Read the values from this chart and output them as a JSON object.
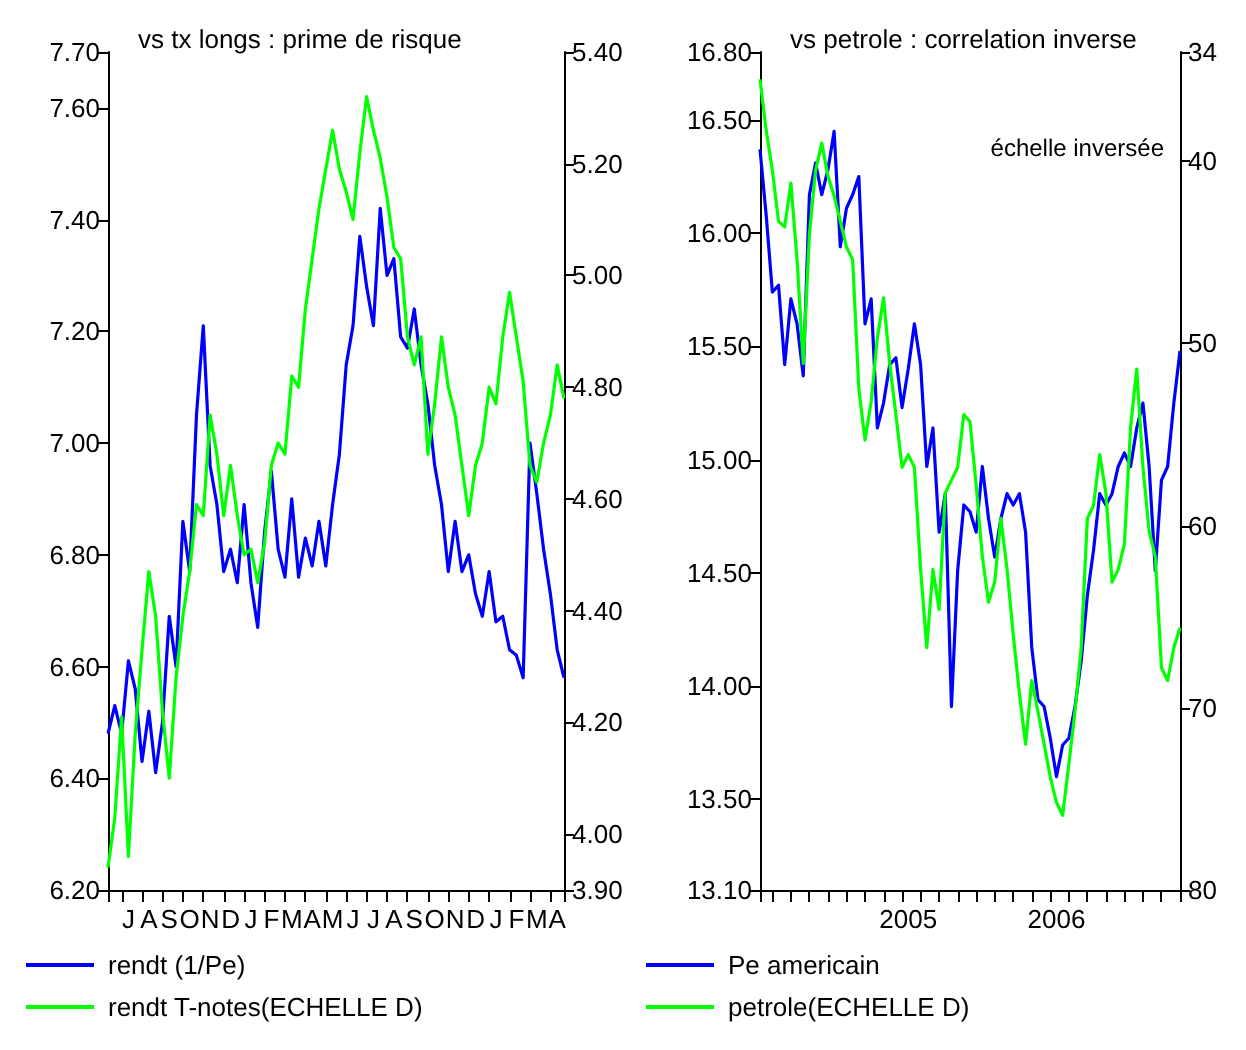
{
  "chart_data": [
    {
      "type": "line",
      "title": "vs tx longs : prime de risque",
      "legend": "bottom",
      "categories": [
        null,
        null,
        null,
        "J",
        null,
        null,
        "A",
        null,
        null,
        "S",
        null,
        null,
        "O",
        null,
        null,
        "N",
        null,
        null,
        "D",
        null,
        null,
        "J",
        null,
        null,
        "F",
        null,
        null,
        "M",
        null,
        null,
        "A",
        null,
        null,
        "M",
        null,
        null,
        "J",
        null,
        null,
        "J",
        null,
        null,
        "A",
        null,
        null,
        "S",
        null,
        null,
        "O",
        null,
        null,
        "N",
        null,
        null,
        "D",
        null,
        null,
        "J",
        null,
        null,
        "F",
        null,
        null,
        "M",
        null,
        null,
        "A",
        null
      ],
      "ylim": [
        6.2,
        7.7
      ],
      "yticks": [
        {
          "value": 6.2,
          "label": "6.20"
        },
        {
          "value": 6.4,
          "label": "6.40"
        },
        {
          "value": 6.6,
          "label": "6.60"
        },
        {
          "value": 6.8,
          "label": "6.80"
        },
        {
          "value": 7.0,
          "label": "7.00"
        },
        {
          "value": 7.2,
          "label": "7.20"
        },
        {
          "value": 7.4,
          "label": "7.40"
        },
        {
          "value": 7.6,
          "label": "7.60"
        },
        {
          "value": 7.7,
          "label": "7.70"
        }
      ],
      "y2lim": [
        3.9,
        5.4
      ],
      "y2ticks": [
        {
          "value": 3.9,
          "label": "3.90"
        },
        {
          "value": 4.0,
          "label": "4.00"
        },
        {
          "value": 4.2,
          "label": "4.20"
        },
        {
          "value": 4.4,
          "label": "4.40"
        },
        {
          "value": 4.6,
          "label": "4.60"
        },
        {
          "value": 4.8,
          "label": "4.80"
        },
        {
          "value": 5.0,
          "label": "5.00"
        },
        {
          "value": 5.2,
          "label": "5.20"
        },
        {
          "value": 5.4,
          "label": "5.40"
        }
      ],
      "series": [
        {
          "name": "rendt (1/Pe)",
          "color": "#0000ff",
          "values": [
            6.48,
            6.53,
            6.48,
            6.61,
            6.56,
            6.43,
            6.52,
            6.41,
            6.5,
            6.69,
            6.6,
            6.86,
            6.77,
            7.05,
            7.21,
            6.96,
            6.89,
            6.77,
            6.81,
            6.75,
            6.89,
            6.75,
            6.67,
            6.84,
            6.95,
            6.81,
            6.76,
            6.9,
            6.76,
            6.83,
            6.78,
            6.86,
            6.78,
            6.89,
            6.98,
            7.14,
            7.21,
            7.37,
            7.28,
            7.21,
            7.42,
            7.3,
            7.33,
            7.19,
            7.17,
            7.24,
            7.14,
            7.07,
            6.96,
            6.89,
            6.77,
            6.86,
            6.77,
            6.8,
            6.73,
            6.69,
            6.77,
            6.68,
            6.69,
            6.63,
            6.62,
            6.58,
            7.0,
            6.91,
            6.81,
            6.73,
            6.63,
            6.58
          ]
        },
        {
          "name": "rendt T-notes(ECHELLE D)",
          "color": "#00ff00",
          "axis": "y2",
          "values": [
            3.94,
            4.03,
            4.21,
            3.96,
            4.18,
            4.33,
            4.47,
            4.39,
            4.22,
            4.1,
            4.28,
            4.39,
            4.47,
            4.59,
            4.57,
            4.75,
            4.68,
            4.57,
            4.66,
            4.57,
            4.5,
            4.51,
            4.45,
            4.52,
            4.66,
            4.7,
            4.68,
            4.82,
            4.8,
            4.94,
            5.03,
            5.12,
            5.19,
            5.26,
            5.19,
            5.15,
            5.1,
            5.22,
            5.32,
            5.26,
            5.21,
            5.14,
            5.05,
            5.03,
            4.89,
            4.84,
            4.89,
            4.68,
            4.77,
            4.89,
            4.8,
            4.75,
            4.66,
            4.57,
            4.66,
            4.7,
            4.8,
            4.77,
            4.89,
            4.97,
            4.89,
            4.81,
            4.66,
            4.63,
            4.7,
            4.75,
            4.84,
            4.78
          ]
        }
      ]
    },
    {
      "type": "line",
      "title": "vs petrole : correlation inverse",
      "legend": "bottom",
      "annotations": [
        "échelle inversée"
      ],
      "categories": [
        null,
        null,
        null,
        null,
        null,
        null,
        null,
        null,
        null,
        null,
        null,
        null,
        null,
        null,
        null,
        null,
        null,
        null,
        null,
        null,
        null,
        null,
        null,
        null,
        "2005",
        null,
        null,
        null,
        null,
        null,
        null,
        null,
        null,
        null,
        null,
        null,
        null,
        null,
        null,
        null,
        null,
        null,
        null,
        null,
        null,
        null,
        null,
        null,
        "2006",
        null,
        null,
        null,
        null,
        null,
        null,
        null,
        null,
        null,
        null,
        null,
        null,
        null,
        null,
        null,
        null,
        null,
        null,
        null,
        null
      ],
      "ylim": [
        13.1,
        16.8
      ],
      "yticks": [
        {
          "value": 13.1,
          "label": "13.10"
        },
        {
          "value": 13.5,
          "label": "13.50"
        },
        {
          "value": 14.0,
          "label": "14.00"
        },
        {
          "value": 14.5,
          "label": "14.50"
        },
        {
          "value": 15.0,
          "label": "15.00"
        },
        {
          "value": 15.5,
          "label": "15.50"
        },
        {
          "value": 16.0,
          "label": "16.00"
        },
        {
          "value": 16.5,
          "label": "16.50"
        },
        {
          "value": 16.8,
          "label": "16.80"
        }
      ],
      "y2lim": [
        80,
        34
      ],
      "y2ticks": [
        34,
        40,
        50,
        60,
        70,
        80
      ],
      "series": [
        {
          "name": "Pe americain",
          "color": "#0000ff",
          "values": [
            16.37,
            16.08,
            15.74,
            15.77,
            15.42,
            15.71,
            15.6,
            15.37,
            16.17,
            16.31,
            16.17,
            16.28,
            16.45,
            15.94,
            16.11,
            16.17,
            16.25,
            15.6,
            15.71,
            15.14,
            15.25,
            15.42,
            15.45,
            15.23,
            15.4,
            15.6,
            15.42,
            14.97,
            15.14,
            14.68,
            14.85,
            13.91,
            14.51,
            14.8,
            14.77,
            14.68,
            14.97,
            14.74,
            14.57,
            14.74,
            14.85,
            14.8,
            14.85,
            14.68,
            14.17,
            13.94,
            13.91,
            13.77,
            13.6,
            13.74,
            13.77,
            13.91,
            14.11,
            14.4,
            14.6,
            14.85,
            14.8,
            14.85,
            14.97,
            15.03,
            14.97,
            15.14,
            15.25,
            14.97,
            14.51,
            14.91,
            14.97,
            15.25,
            15.48
          ]
        },
        {
          "name": "petrole(ECHELLE D)",
          "color": "#00ff00",
          "axis": "y2",
          "values": [
            35.5,
            38.3,
            40.5,
            43.3,
            43.6,
            41.2,
            45.4,
            51.1,
            44.0,
            40.5,
            39.0,
            40.8,
            41.9,
            43.3,
            44.7,
            45.4,
            52.5,
            55.3,
            53.2,
            49.7,
            47.5,
            51.1,
            53.9,
            56.8,
            56.1,
            56.8,
            62.4,
            66.7,
            62.4,
            64.6,
            58.2,
            57.5,
            56.8,
            53.9,
            54.3,
            57.8,
            61.7,
            64.2,
            63.1,
            59.6,
            62.4,
            66.0,
            69.2,
            72.0,
            68.5,
            70.2,
            72.0,
            73.8,
            75.2,
            75.9,
            73.1,
            70.2,
            66.7,
            59.6,
            58.9,
            56.1,
            58.2,
            63.1,
            62.4,
            61.0,
            54.6,
            51.4,
            56.8,
            60.3,
            61.7,
            67.8,
            68.5,
            66.7,
            65.6
          ]
        }
      ]
    }
  ]
}
